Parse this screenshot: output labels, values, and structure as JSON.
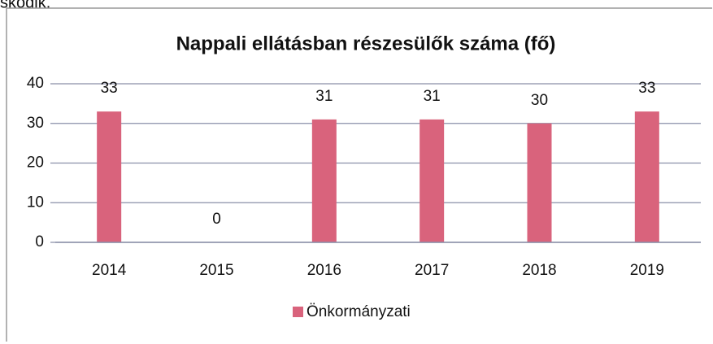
{
  "fragment": "skodik.",
  "chart_data": {
    "type": "bar",
    "title": "Nappali ellátásban részesülők száma (fő)",
    "categories": [
      "2014",
      "2015",
      "2016",
      "2017",
      "2018",
      "2019"
    ],
    "series": [
      {
        "name": "Önkormányzati",
        "color": "#d9637c",
        "values": [
          33,
          0,
          31,
          31,
          30,
          33
        ]
      }
    ],
    "ylim": [
      0,
      40
    ],
    "yticks": [
      0,
      10,
      20,
      30,
      40
    ],
    "grid": true,
    "legend": "bottom"
  }
}
